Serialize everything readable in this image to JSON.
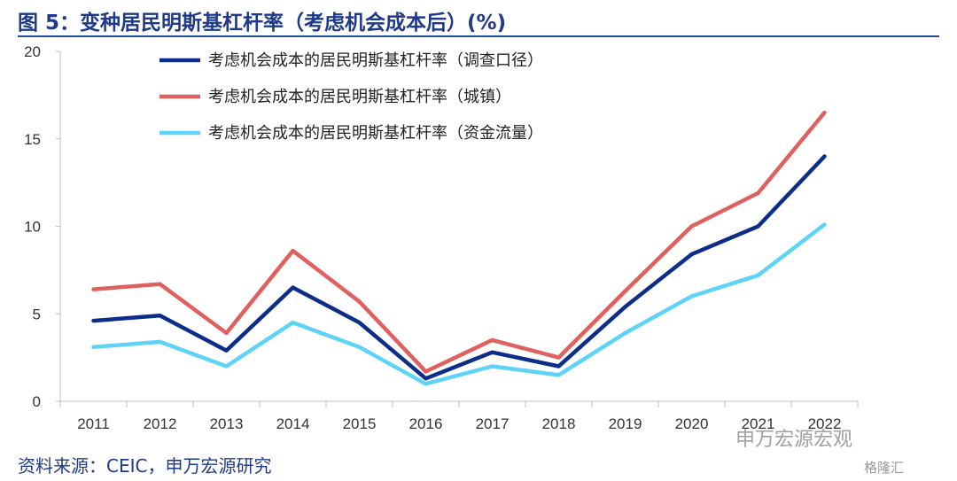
{
  "header": {
    "title": "图 5：变种居民明斯基杠杆率（考虑机会成本后）(%)"
  },
  "footer": {
    "source": "资料来源：CEIC，申万宏源研究"
  },
  "watermarks": {
    "main": "申万宏源宏观",
    "corner": "格隆汇"
  },
  "chart_data": {
    "type": "line",
    "x": [
      "2011",
      "2012",
      "2013",
      "2014",
      "2015",
      "2016",
      "2017",
      "2018",
      "2019",
      "2020",
      "2021",
      "2022"
    ],
    "ylim": [
      0,
      20
    ],
    "yticks": [
      0,
      5,
      10,
      15,
      20
    ],
    "grid": false,
    "legend_position": "top-left",
    "series": [
      {
        "name": "考虑机会成本的居民明斯基杠杆率（调查口径）",
        "color": "#0d2d8a",
        "values": [
          4.6,
          4.9,
          2.9,
          6.5,
          4.5,
          1.3,
          2.8,
          2.0,
          5.4,
          8.4,
          10.0,
          14.0
        ]
      },
      {
        "name": "考虑机会成本的居民明斯基杠杆率（城镇）",
        "color": "#e0605f",
        "values": [
          6.4,
          6.7,
          3.9,
          8.6,
          5.7,
          1.7,
          3.5,
          2.5,
          6.3,
          10.0,
          11.9,
          16.5
        ]
      },
      {
        "name": "考虑机会成本的居民明斯基杠杆率（资金流量）",
        "color": "#5fd2f7",
        "values": [
          3.1,
          3.4,
          2.0,
          4.5,
          3.1,
          1.0,
          2.0,
          1.5,
          3.9,
          6.0,
          7.2,
          10.1
        ]
      }
    ]
  }
}
